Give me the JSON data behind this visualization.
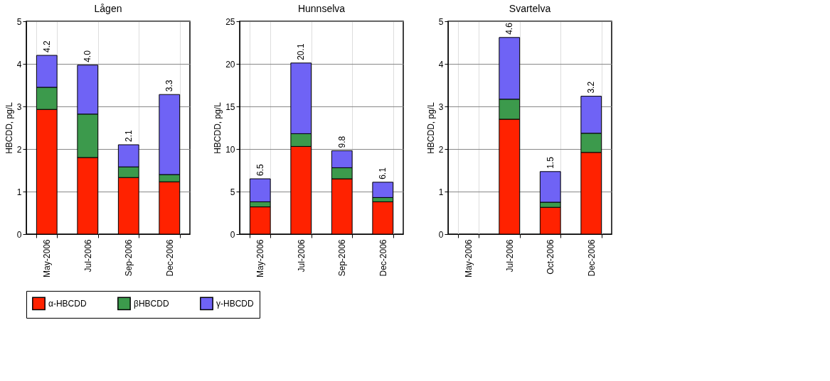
{
  "chart_data": [
    {
      "type": "bar",
      "stacked": true,
      "title": "Lågen",
      "ylabel": "HBCDD, pg/L",
      "categories": [
        "May-2006",
        "Jul-2006",
        "Sep-2006",
        "Dec-2006"
      ],
      "ylim": [
        0,
        5
      ],
      "yticks": [
        0,
        1,
        2,
        3,
        4,
        5
      ],
      "grid": true,
      "legend": "bottom",
      "series": [
        {
          "name": "α-HBCDD",
          "color": "#ff2200",
          "values": [
            2.93,
            1.8,
            1.33,
            1.23
          ]
        },
        {
          "name": "βHBCDD",
          "color": "#3c9a4c",
          "values": [
            0.52,
            1.02,
            0.25,
            0.17
          ]
        },
        {
          "name": "γ-HBCDD",
          "color": "#6f63f5",
          "values": [
            0.75,
            1.15,
            0.52,
            1.88
          ]
        }
      ],
      "totals": [
        "4.2",
        "4.0",
        "2.1",
        "3.3"
      ]
    },
    {
      "type": "bar",
      "stacked": true,
      "title": "Hunnselva",
      "ylabel": "HBCDD, pg/L",
      "categories": [
        "May-2006",
        "Jul-2006",
        "Sep-2006",
        "Dec-2006"
      ],
      "ylim": [
        0,
        25
      ],
      "yticks": [
        0,
        5,
        10,
        15,
        20,
        25
      ],
      "grid": true,
      "legend": "bottom",
      "series": [
        {
          "name": "α-HBCDD",
          "color": "#ff2200",
          "values": [
            3.2,
            10.3,
            6.5,
            3.8
          ]
        },
        {
          "name": "βHBCDD",
          "color": "#3c9a4c",
          "values": [
            0.6,
            1.5,
            1.3,
            0.5
          ]
        },
        {
          "name": "γ-HBCDD",
          "color": "#6f63f5",
          "values": [
            2.7,
            8.3,
            2.0,
            1.8
          ]
        }
      ],
      "totals": [
        "6.5",
        "20.1",
        "9.8",
        "6.1"
      ]
    },
    {
      "type": "bar",
      "stacked": true,
      "title": "Svartelva",
      "ylabel": "HBCDD, pg/L",
      "categories": [
        "May-2006",
        "Jul-2006",
        "Oct-2006",
        "Dec-2006"
      ],
      "ylim": [
        0,
        5
      ],
      "yticks": [
        0,
        1,
        2,
        3,
        4,
        5
      ],
      "grid": true,
      "legend": "bottom",
      "series": [
        {
          "name": "α-HBCDD",
          "color": "#ff2200",
          "values": [
            null,
            2.7,
            0.63,
            1.92
          ]
        },
        {
          "name": "βHBCDD",
          "color": "#3c9a4c",
          "values": [
            null,
            0.47,
            0.12,
            0.45
          ]
        },
        {
          "name": "γ-HBCDD",
          "color": "#6f63f5",
          "values": [
            null,
            1.45,
            0.72,
            0.87
          ]
        }
      ],
      "totals": [
        null,
        "4.6",
        "1.5",
        "3.2"
      ]
    }
  ]
}
